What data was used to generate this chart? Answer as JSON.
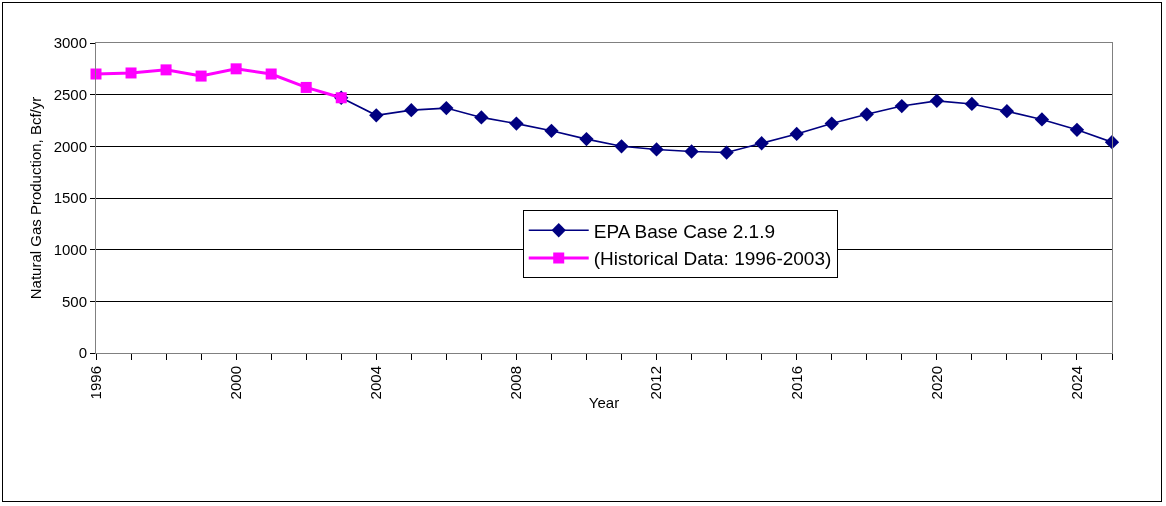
{
  "chart_data": {
    "type": "line",
    "xlabel": "Year",
    "ylabel": "Natural Gas Production, Bcf/yr",
    "xlim": [
      1996,
      2025
    ],
    "xticks": [
      1996,
      2000,
      2004,
      2008,
      2012,
      2016,
      2020,
      2024
    ],
    "ylim": [
      0,
      3000
    ],
    "yticks": [
      0,
      500,
      1000,
      1500,
      2000,
      2500,
      3000
    ],
    "grid": "y",
    "legend": "bottom right",
    "line_style": "solid",
    "series": [
      {
        "name": "EPA Base Case 2.1.9",
        "color": "#000080",
        "marker": "diamond",
        "x": [
          2003,
          2004,
          2005,
          2006,
          2007,
          2008,
          2009,
          2010,
          2011,
          2012,
          2013,
          2014,
          2015,
          2016,
          2017,
          2018,
          2019,
          2020,
          2021,
          2022,
          2023,
          2024,
          2025
        ],
        "values": [
          2470,
          2300,
          2350,
          2370,
          2280,
          2220,
          2150,
          2070,
          2000,
          1970,
          1950,
          1940,
          2030,
          2120,
          2220,
          2310,
          2390,
          2440,
          2410,
          2340,
          2260,
          2160,
          2040
        ]
      },
      {
        "name": "(Historical Data: 1996-2003)",
        "color": "#ff00ff",
        "marker": "square",
        "x": [
          1996,
          1997,
          1998,
          1999,
          2000,
          2001,
          2002,
          2003
        ],
        "values": [
          2700,
          2710,
          2740,
          2680,
          2750,
          2700,
          2570,
          2470
        ]
      }
    ]
  }
}
